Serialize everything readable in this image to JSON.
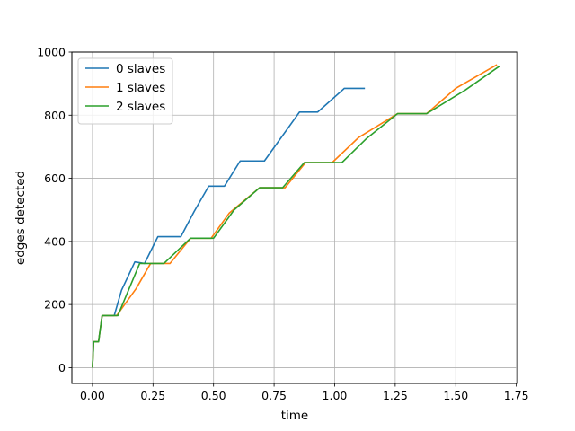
{
  "chart_data": {
    "type": "line",
    "title": "",
    "xlabel": "time",
    "ylabel": "edges detected",
    "xlim": [
      -0.085,
      1.755
    ],
    "ylim": [
      -50,
      1000
    ],
    "x_ticks": [
      0.0,
      0.25,
      0.5,
      0.75,
      1.0,
      1.25,
      1.5,
      1.75
    ],
    "x_tick_labels": [
      "0.00",
      "0.25",
      "0.50",
      "0.75",
      "1.00",
      "1.25",
      "1.50",
      "1.75"
    ],
    "y_ticks": [
      0,
      200,
      400,
      600,
      800,
      1000
    ],
    "y_tick_labels": [
      "0",
      "200",
      "400",
      "600",
      "800",
      "1000"
    ],
    "grid": true,
    "legend_position": "top-left",
    "series": [
      {
        "name": "0 slaves",
        "color": "#1f77b4",
        "points": [
          [
            0.0,
            0
          ],
          [
            0.005,
            82
          ],
          [
            0.025,
            82
          ],
          [
            0.04,
            165
          ],
          [
            0.09,
            165
          ],
          [
            0.12,
            245
          ],
          [
            0.175,
            335
          ],
          [
            0.215,
            330
          ],
          [
            0.27,
            415
          ],
          [
            0.365,
            415
          ],
          [
            0.42,
            495
          ],
          [
            0.48,
            575
          ],
          [
            0.545,
            575
          ],
          [
            0.61,
            655
          ],
          [
            0.71,
            655
          ],
          [
            0.855,
            810
          ],
          [
            0.93,
            810
          ],
          [
            1.04,
            885
          ],
          [
            1.125,
            885
          ]
        ]
      },
      {
        "name": "1 slaves",
        "color": "#ff7f0e",
        "points": [
          [
            0.0,
            0
          ],
          [
            0.005,
            82
          ],
          [
            0.025,
            82
          ],
          [
            0.04,
            165
          ],
          [
            0.1,
            165
          ],
          [
            0.18,
            250
          ],
          [
            0.24,
            330
          ],
          [
            0.32,
            330
          ],
          [
            0.405,
            410
          ],
          [
            0.49,
            410
          ],
          [
            0.565,
            490
          ],
          [
            0.69,
            570
          ],
          [
            0.795,
            570
          ],
          [
            0.88,
            650
          ],
          [
            0.99,
            650
          ],
          [
            1.1,
            730
          ],
          [
            1.26,
            805
          ],
          [
            1.38,
            805
          ],
          [
            1.5,
            885
          ],
          [
            1.67,
            960
          ]
        ]
      },
      {
        "name": "2 slaves",
        "color": "#2ca02c",
        "points": [
          [
            0.0,
            0
          ],
          [
            0.005,
            82
          ],
          [
            0.025,
            82
          ],
          [
            0.04,
            165
          ],
          [
            0.105,
            165
          ],
          [
            0.195,
            330
          ],
          [
            0.295,
            330
          ],
          [
            0.405,
            410
          ],
          [
            0.5,
            410
          ],
          [
            0.585,
            500
          ],
          [
            0.69,
            570
          ],
          [
            0.785,
            570
          ],
          [
            0.875,
            650
          ],
          [
            1.03,
            650
          ],
          [
            1.13,
            725
          ],
          [
            1.26,
            805
          ],
          [
            1.38,
            805
          ],
          [
            1.54,
            880
          ],
          [
            1.68,
            955
          ]
        ]
      }
    ]
  }
}
